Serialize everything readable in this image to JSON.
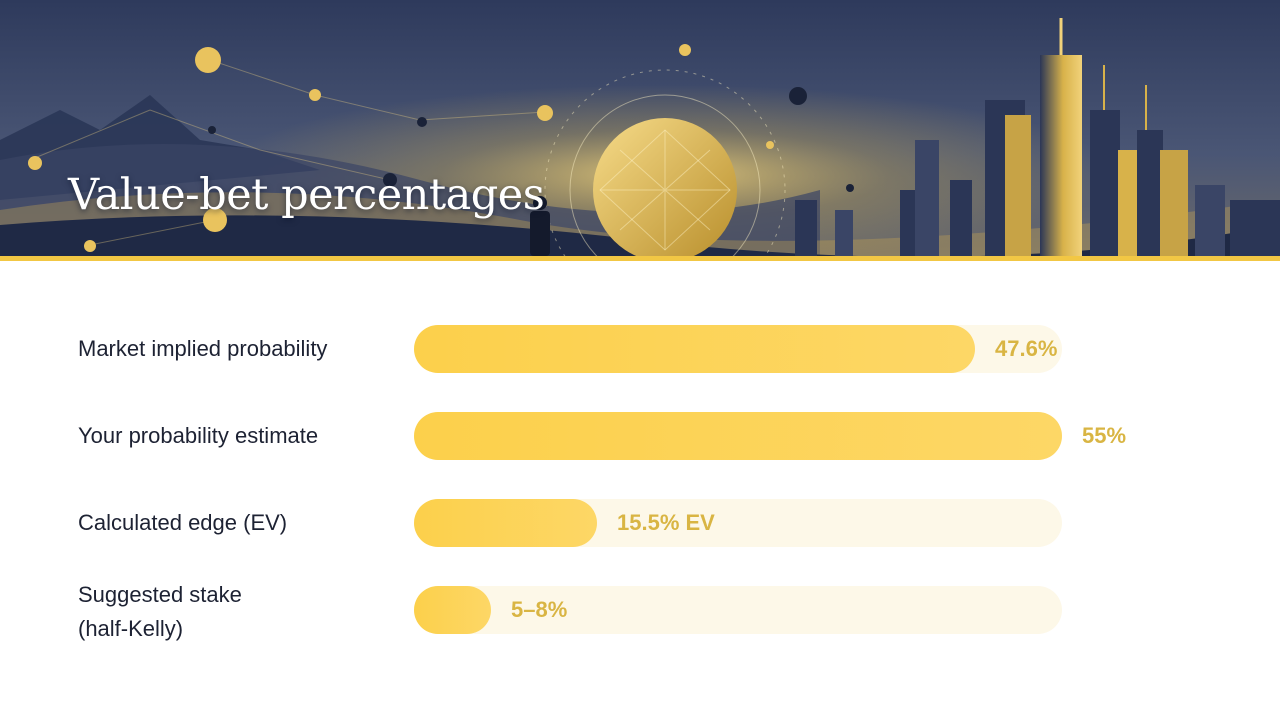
{
  "slide": {
    "title": "Value-bet percentages"
  },
  "colors": {
    "accent": "#f2c744",
    "bar_fill": "#fcd04b",
    "bar_track": "#fdf8e8",
    "value_text": "#d9b543",
    "label_text": "#1d2233",
    "banner_dark": "#2a3352"
  },
  "chart_data": {
    "type": "bar",
    "orientation": "horizontal",
    "title": "Value-bet percentages",
    "xlabel": "",
    "ylabel": "",
    "xlim": [
      0,
      55
    ],
    "grid": false,
    "categories": [
      "Market implied probability",
      "Your probability estimate",
      "Calculated edge (EV)",
      "Suggested stake (half-Kelly)"
    ],
    "values": [
      47.6,
      55,
      15.5,
      6.5
    ],
    "value_labels": [
      "47.6%",
      "55%",
      "15.5% EV",
      "5–8%"
    ]
  }
}
